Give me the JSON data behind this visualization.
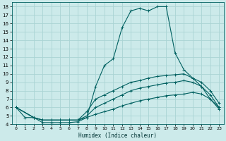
{
  "xlabel": "Humidex (Indice chaleur)",
  "background_color": "#cceaea",
  "grid_color": "#aad4d4",
  "line_color": "#006060",
  "xlim": [
    -0.5,
    23.5
  ],
  "ylim": [
    4,
    18.5
  ],
  "xticks": [
    0,
    1,
    2,
    3,
    4,
    5,
    6,
    7,
    8,
    9,
    10,
    11,
    12,
    13,
    14,
    15,
    16,
    17,
    18,
    19,
    20,
    21,
    22,
    23
  ],
  "yticks": [
    4,
    5,
    6,
    7,
    8,
    9,
    10,
    11,
    12,
    13,
    14,
    15,
    16,
    17,
    18
  ],
  "line1_x": [
    0,
    1,
    2,
    3,
    4,
    5,
    6,
    7,
    8,
    9,
    10,
    11,
    12,
    13,
    14,
    15,
    16,
    17,
    18,
    19,
    20,
    21,
    22,
    23
  ],
  "line1_y": [
    6,
    4.8,
    4.8,
    4.2,
    4.2,
    4.2,
    4.2,
    4.3,
    4.8,
    8.5,
    11,
    11.8,
    15.5,
    17.5,
    17.8,
    17.5,
    18,
    18,
    12.5,
    10.5,
    9.5,
    8.5,
    7.5,
    6
  ],
  "line2_x": [
    0,
    2,
    3,
    4,
    5,
    6,
    7,
    8,
    9,
    10,
    11,
    12,
    13,
    14,
    15,
    16,
    17,
    18,
    19,
    20,
    21,
    22,
    23
  ],
  "line2_y": [
    6,
    4.8,
    4.5,
    4.5,
    4.5,
    4.5,
    4.5,
    5.5,
    7,
    7.5,
    8,
    8.5,
    9,
    9.2,
    9.5,
    9.7,
    9.8,
    9.9,
    10,
    9.5,
    9,
    8,
    6.5
  ],
  "line3_x": [
    0,
    2,
    3,
    4,
    5,
    6,
    7,
    8,
    9,
    10,
    11,
    12,
    13,
    14,
    15,
    16,
    17,
    18,
    19,
    20,
    21,
    22,
    23
  ],
  "line3_y": [
    6,
    4.8,
    4.5,
    4.5,
    4.5,
    4.5,
    4.5,
    5,
    6,
    6.5,
    7,
    7.5,
    8,
    8.3,
    8.5,
    8.7,
    8.9,
    9,
    9.2,
    9,
    8.5,
    7,
    6
  ],
  "line4_x": [
    0,
    2,
    3,
    4,
    5,
    6,
    7,
    8,
    9,
    10,
    11,
    12,
    13,
    14,
    15,
    16,
    17,
    18,
    19,
    20,
    21,
    22,
    23
  ],
  "line4_y": [
    6,
    4.8,
    4.5,
    4.5,
    4.5,
    4.5,
    4.5,
    4.8,
    5.2,
    5.5,
    5.8,
    6.2,
    6.5,
    6.8,
    7,
    7.2,
    7.4,
    7.5,
    7.6,
    7.8,
    7.6,
    7,
    5.8
  ]
}
